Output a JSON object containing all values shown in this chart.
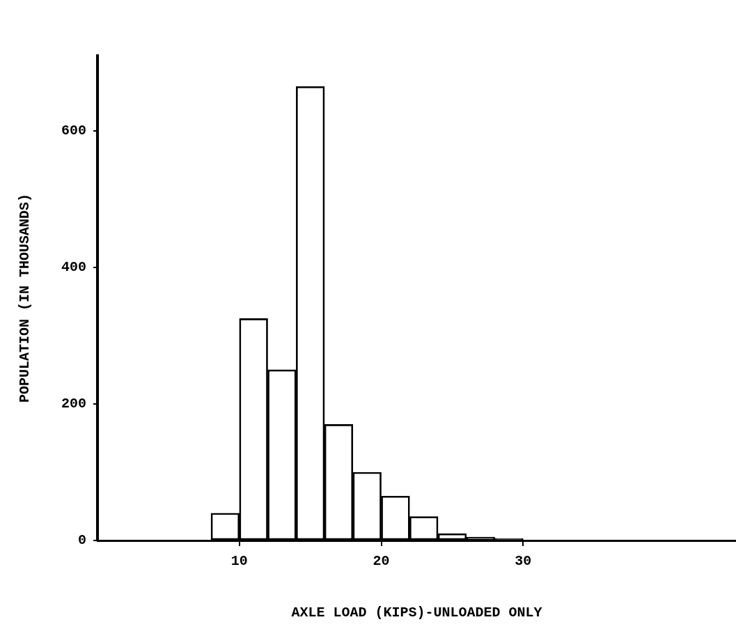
{
  "chart_data": {
    "type": "bar",
    "xlabel": "AXLE LOAD (KIPS)-UNLOADED ONLY",
    "ylabel": "POPULATION (IN THOUSANDS)",
    "x": [
      9,
      11,
      13,
      15,
      17,
      19,
      21,
      23,
      25,
      27,
      29
    ],
    "values": [
      40,
      325,
      250,
      665,
      170,
      100,
      65,
      35,
      10,
      5,
      3
    ],
    "color": "#000000",
    "xlim": [
      0,
      45
    ],
    "xticks": [
      10,
      20,
      30
    ],
    "ylim": [
      0,
      710
    ],
    "yticks": [
      0,
      200,
      400,
      600
    ],
    "grid": false,
    "legend": false
  }
}
